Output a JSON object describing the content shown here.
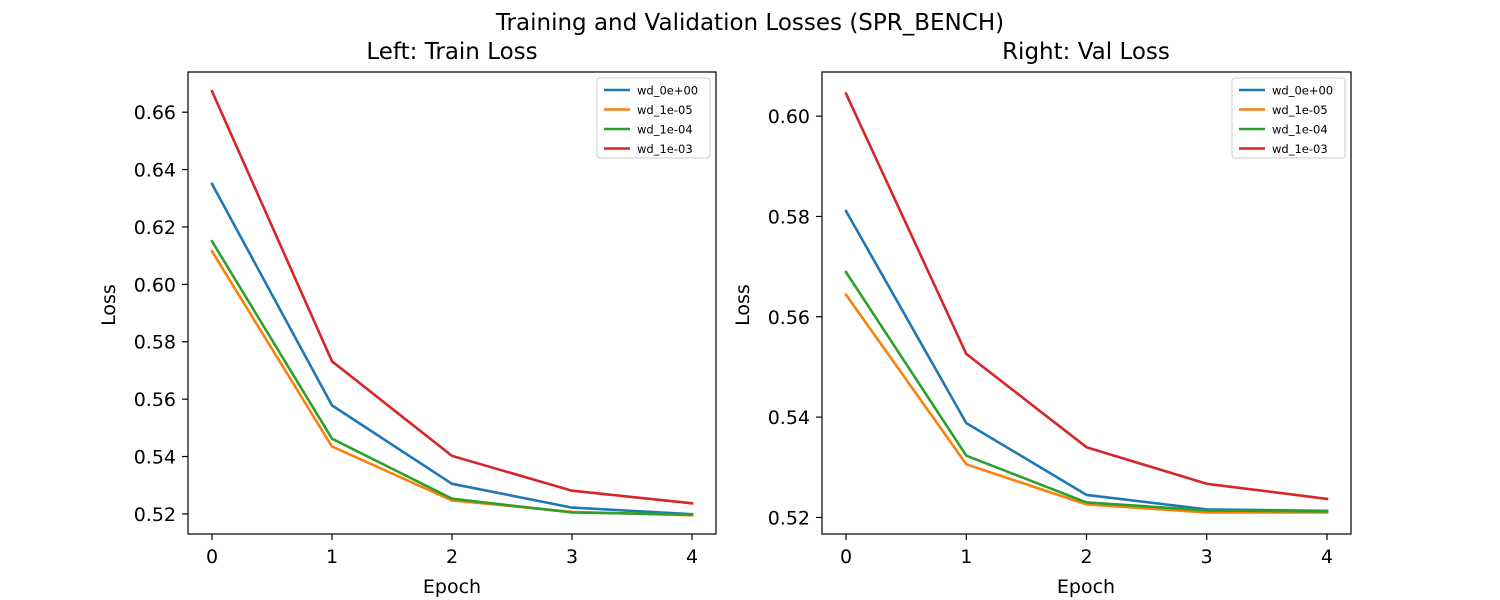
{
  "figure": {
    "suptitle": "Training and Validation Losses (SPR_BENCH)"
  },
  "chart_data": [
    {
      "type": "line",
      "title": "Left: Train Loss",
      "xlabel": "Epoch",
      "ylabel": "Loss",
      "x": [
        0,
        1,
        2,
        3,
        4
      ],
      "xticks": [
        "0",
        "1",
        "2",
        "3",
        "4"
      ],
      "xlim": [
        -0.2,
        4.2
      ],
      "ylim": [
        0.513,
        0.674
      ],
      "yticks": [
        "0.52",
        "0.54",
        "0.56",
        "0.58",
        "0.60",
        "0.62",
        "0.64",
        "0.66"
      ],
      "grid": false,
      "legend": "top-right",
      "series": [
        {
          "name": "wd_0e+00",
          "color": "#1f77b4",
          "values": [
            0.635,
            0.5578,
            0.5305,
            0.5222,
            0.5199
          ]
        },
        {
          "name": "wd_1e-05",
          "color": "#ff7f0e",
          "values": [
            0.6115,
            0.5435,
            0.5247,
            0.5207,
            0.5195
          ]
        },
        {
          "name": "wd_1e-04",
          "color": "#2ca02c",
          "values": [
            0.615,
            0.5462,
            0.5253,
            0.5205,
            0.5198
          ]
        },
        {
          "name": "wd_1e-03",
          "color": "#d62728",
          "values": [
            0.6673,
            0.5732,
            0.5402,
            0.5281,
            0.5237
          ]
        }
      ]
    },
    {
      "type": "line",
      "title": "Right: Val Loss",
      "xlabel": "Epoch",
      "ylabel": "Loss",
      "x": [
        0,
        1,
        2,
        3,
        4
      ],
      "xticks": [
        "0",
        "1",
        "2",
        "3",
        "4"
      ],
      "xlim": [
        -0.2,
        4.2
      ],
      "ylim": [
        0.5167,
        0.6088
      ],
      "yticks": [
        "0.52",
        "0.54",
        "0.56",
        "0.58",
        "0.60"
      ],
      "grid": false,
      "legend": "top-right",
      "series": [
        {
          "name": "wd_0e+00",
          "color": "#1f77b4",
          "values": [
            0.5811,
            0.5388,
            0.5245,
            0.5216,
            0.5213
          ]
        },
        {
          "name": "wd_1e-05",
          "color": "#ff7f0e",
          "values": [
            0.5644,
            0.5306,
            0.5226,
            0.521,
            0.521
          ]
        },
        {
          "name": "wd_1e-04",
          "color": "#2ca02c",
          "values": [
            0.5689,
            0.5323,
            0.523,
            0.5214,
            0.5212
          ]
        },
        {
          "name": "wd_1e-03",
          "color": "#d62728",
          "values": [
            0.6045,
            0.5526,
            0.534,
            0.5267,
            0.5237
          ]
        }
      ]
    }
  ]
}
